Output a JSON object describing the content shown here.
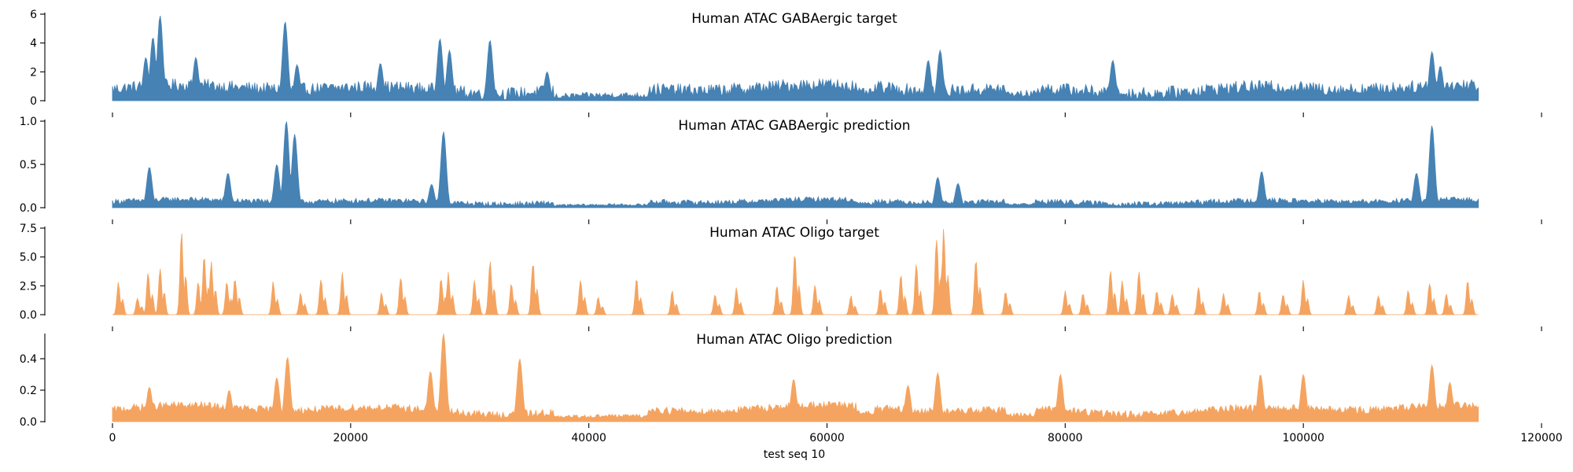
{
  "chart_data": {
    "type": "area",
    "xlabel": "test seq 10",
    "x_range": [
      0,
      114700
    ],
    "x_axis_limit": 120000,
    "x_ticks": [
      0,
      20000,
      40000,
      60000,
      80000,
      100000,
      120000
    ],
    "x_tick_labels": [
      "0",
      "20000",
      "40000",
      "60000",
      "80000",
      "100000",
      "120000"
    ],
    "panels": [
      {
        "title": "Human ATAC GABAergic target",
        "color": "#4682b4",
        "ylim": [
          0,
          6.0
        ],
        "y_ticks": [
          0,
          2,
          4,
          6
        ],
        "y_tick_labels": [
          "0",
          "2",
          "4",
          "6"
        ],
        "baseline": 0.9,
        "amp": 0.9,
        "floor": 0.0,
        "sparse": false,
        "peaks": [
          {
            "x": 4000,
            "h": 5.9
          },
          {
            "x": 3400,
            "h": 4.4
          },
          {
            "x": 2800,
            "h": 3.0
          },
          {
            "x": 7000,
            "h": 3.0
          },
          {
            "x": 14500,
            "h": 5.5
          },
          {
            "x": 15500,
            "h": 2.5
          },
          {
            "x": 22500,
            "h": 2.6
          },
          {
            "x": 27500,
            "h": 4.3
          },
          {
            "x": 28300,
            "h": 3.5
          },
          {
            "x": 31700,
            "h": 4.2
          },
          {
            "x": 36500,
            "h": 2.0
          },
          {
            "x": 69500,
            "h": 3.5
          },
          {
            "x": 68500,
            "h": 2.8
          },
          {
            "x": 84000,
            "h": 2.8
          },
          {
            "x": 110800,
            "h": 3.4
          },
          {
            "x": 111500,
            "h": 2.4
          }
        ]
      },
      {
        "title": "Human ATAC GABAergic prediction",
        "color": "#4682b4",
        "ylim": [
          0,
          1.0
        ],
        "y_ticks": [
          0,
          0.5,
          1.0
        ],
        "y_tick_labels": [
          "0.0",
          "0.5",
          "1.0"
        ],
        "baseline": 0.08,
        "amp": 0.06,
        "floor": 0.0,
        "sparse": false,
        "peaks": [
          {
            "x": 3100,
            "h": 0.47
          },
          {
            "x": 9700,
            "h": 0.4
          },
          {
            "x": 14600,
            "h": 1.0
          },
          {
            "x": 15300,
            "h": 0.85
          },
          {
            "x": 13800,
            "h": 0.5
          },
          {
            "x": 27800,
            "h": 0.88
          },
          {
            "x": 26800,
            "h": 0.27
          },
          {
            "x": 69300,
            "h": 0.35
          },
          {
            "x": 71000,
            "h": 0.28
          },
          {
            "x": 96500,
            "h": 0.42
          },
          {
            "x": 110800,
            "h": 0.95
          },
          {
            "x": 109500,
            "h": 0.4
          }
        ]
      },
      {
        "title": "Human ATAC Oligo target",
        "color": "#f4a460",
        "ylim": [
          0,
          7.5
        ],
        "y_ticks": [
          0,
          2.5,
          5.0,
          7.5
        ],
        "y_tick_labels": [
          "0.0",
          "2.5",
          "5.0",
          "7.5"
        ],
        "baseline": 0.0,
        "amp": 0.0,
        "floor": 0.0,
        "sparse": true,
        "peaks": [
          {
            "x": 500,
            "h": 3.0
          },
          {
            "x": 2100,
            "h": 1.6
          },
          {
            "x": 3000,
            "h": 3.9
          },
          {
            "x": 4000,
            "h": 4.4
          },
          {
            "x": 5800,
            "h": 7.6
          },
          {
            "x": 7200,
            "h": 3.0
          },
          {
            "x": 7700,
            "h": 5.3
          },
          {
            "x": 8300,
            "h": 4.9
          },
          {
            "x": 9600,
            "h": 3.1
          },
          {
            "x": 10300,
            "h": 3.4
          },
          {
            "x": 13500,
            "h": 3.0
          },
          {
            "x": 15800,
            "h": 2.1
          },
          {
            "x": 17500,
            "h": 3.3
          },
          {
            "x": 19300,
            "h": 3.9
          },
          {
            "x": 22600,
            "h": 2.0
          },
          {
            "x": 24200,
            "h": 3.5
          },
          {
            "x": 27600,
            "h": 3.5
          },
          {
            "x": 28200,
            "h": 3.8
          },
          {
            "x": 30400,
            "h": 3.1
          },
          {
            "x": 31700,
            "h": 5.1
          },
          {
            "x": 33500,
            "h": 2.8
          },
          {
            "x": 35300,
            "h": 5.0
          },
          {
            "x": 39300,
            "h": 3.4
          },
          {
            "x": 40800,
            "h": 1.6
          },
          {
            "x": 44000,
            "h": 3.3
          },
          {
            "x": 47000,
            "h": 2.1
          },
          {
            "x": 50600,
            "h": 2.0
          },
          {
            "x": 52400,
            "h": 2.4
          },
          {
            "x": 55800,
            "h": 2.6
          },
          {
            "x": 57300,
            "h": 5.7
          },
          {
            "x": 59000,
            "h": 2.8
          },
          {
            "x": 62000,
            "h": 1.7
          },
          {
            "x": 64500,
            "h": 2.5
          },
          {
            "x": 66200,
            "h": 3.6
          },
          {
            "x": 67500,
            "h": 4.6
          },
          {
            "x": 69200,
            "h": 7.5
          },
          {
            "x": 69800,
            "h": 7.6
          },
          {
            "x": 72500,
            "h": 5.3
          },
          {
            "x": 75000,
            "h": 2.2
          },
          {
            "x": 80000,
            "h": 2.1
          },
          {
            "x": 81500,
            "h": 2.0
          },
          {
            "x": 83800,
            "h": 4.3
          },
          {
            "x": 84800,
            "h": 3.1
          },
          {
            "x": 86200,
            "h": 4.2
          },
          {
            "x": 87700,
            "h": 2.3
          },
          {
            "x": 89000,
            "h": 1.9
          },
          {
            "x": 91200,
            "h": 2.5
          },
          {
            "x": 93300,
            "h": 2.0
          },
          {
            "x": 96300,
            "h": 2.2
          },
          {
            "x": 98300,
            "h": 2.0
          },
          {
            "x": 100000,
            "h": 3.1
          },
          {
            "x": 103800,
            "h": 1.8
          },
          {
            "x": 106300,
            "h": 1.8
          },
          {
            "x": 108800,
            "h": 2.3
          },
          {
            "x": 110600,
            "h": 3.1
          },
          {
            "x": 112000,
            "h": 1.9
          },
          {
            "x": 113800,
            "h": 3.0
          }
        ]
      },
      {
        "title": "Human ATAC Oligo prediction",
        "color": "#f4a460",
        "ylim": [
          0,
          0.55
        ],
        "y_ticks": [
          0.0,
          0.2,
          0.4
        ],
        "y_tick_labels": [
          "0.0",
          "0.2",
          "0.4"
        ],
        "baseline": 0.09,
        "amp": 0.05,
        "floor": 0.0,
        "sparse": false,
        "peaks": [
          {
            "x": 3100,
            "h": 0.22
          },
          {
            "x": 9800,
            "h": 0.2
          },
          {
            "x": 14700,
            "h": 0.41
          },
          {
            "x": 13800,
            "h": 0.28
          },
          {
            "x": 27800,
            "h": 0.56
          },
          {
            "x": 26700,
            "h": 0.32
          },
          {
            "x": 34200,
            "h": 0.4
          },
          {
            "x": 57200,
            "h": 0.27
          },
          {
            "x": 69300,
            "h": 0.31
          },
          {
            "x": 66800,
            "h": 0.23
          },
          {
            "x": 79600,
            "h": 0.3
          },
          {
            "x": 96400,
            "h": 0.3
          },
          {
            "x": 100000,
            "h": 0.3
          },
          {
            "x": 110800,
            "h": 0.36
          },
          {
            "x": 112300,
            "h": 0.25
          }
        ]
      }
    ]
  }
}
